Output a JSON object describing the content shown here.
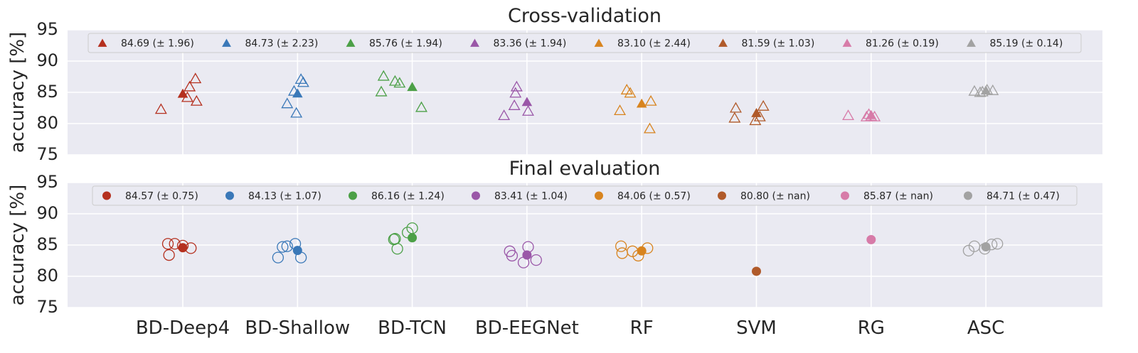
{
  "chart_data": [
    {
      "type": "scatter",
      "title": "Cross-validation",
      "ylabel": "accuracy [%]",
      "ylim": [
        75,
        95
      ],
      "yticks": [
        75,
        80,
        85,
        90,
        95
      ],
      "categories": [
        "BD-Deep4",
        "BD-Shallow",
        "BD-TCN",
        "BD-EEGNet",
        "RF",
        "SVM",
        "RG",
        "ASC"
      ],
      "marker": "triangle",
      "legend": {
        "placement": "top",
        "labels": [
          "84.69 (± 1.96)",
          "84.73 (± 2.23)",
          "85.76 (± 1.94)",
          "83.36 (± 1.94)",
          "83.10 (± 2.44)",
          "81.59 (± 1.03)",
          "81.26 (± 0.19)",
          "85.19 (± 0.14)"
        ]
      },
      "series": [
        {
          "name": "BD-Deep4",
          "color": "#b5301f",
          "mean": 84.69,
          "folds": [
            82.2,
            87.1,
            83.5,
            84.1,
            85.8
          ],
          "offsets": [
            -0.19,
            0.11,
            0.12,
            0.04,
            0.06
          ]
        },
        {
          "name": "BD-Shallow",
          "color": "#3a78b8",
          "mean": 84.73,
          "folds": [
            83.1,
            81.6,
            87.0,
            86.5,
            85.1
          ],
          "offsets": [
            -0.09,
            -0.01,
            0.03,
            0.05,
            -0.03
          ]
        },
        {
          "name": "BD-TCN",
          "color": "#4ca047",
          "mean": 85.76,
          "folds": [
            87.5,
            85.0,
            86.7,
            86.4,
            82.5
          ],
          "offsets": [
            -0.25,
            -0.27,
            -0.15,
            -0.11,
            0.08
          ]
        },
        {
          "name": "BD-EEGNet",
          "color": "#9a57a8",
          "mean": 83.36,
          "folds": [
            81.2,
            82.8,
            85.8,
            84.8,
            81.9
          ],
          "offsets": [
            -0.2,
            -0.11,
            -0.09,
            -0.1,
            0.01
          ]
        },
        {
          "name": "RF",
          "color": "#d8841f",
          "mean": 83.1,
          "folds": [
            82.0,
            85.3,
            84.8,
            83.5,
            79.1
          ],
          "offsets": [
            -0.19,
            -0.13,
            -0.1,
            0.08,
            0.07
          ]
        },
        {
          "name": "SVM",
          "color": "#b05a2a",
          "mean": 81.59,
          "folds": [
            80.8,
            82.4,
            80.4,
            81.0,
            82.7
          ],
          "offsets": [
            -0.19,
            -0.18,
            -0.01,
            0.03,
            0.06
          ]
        },
        {
          "name": "RG",
          "color": "#d77ba8",
          "mean": 81.26,
          "folds": [
            81.2,
            81.0,
            81.4,
            81.1,
            81.0
          ],
          "offsets": [
            -0.2,
            -0.04,
            -0.02,
            0.0,
            0.03
          ]
        },
        {
          "name": "ASC",
          "color": "#a2a2a2",
          "mean": 85.19,
          "folds": [
            85.1,
            84.9,
            85.0,
            85.3,
            85.2
          ],
          "offsets": [
            -0.1,
            -0.05,
            -0.03,
            0.01,
            0.06
          ]
        }
      ]
    },
    {
      "type": "scatter",
      "title": "Final evaluation",
      "ylabel": "accuracy [%]",
      "ylim": [
        75,
        95
      ],
      "yticks": [
        75,
        80,
        85,
        90,
        95
      ],
      "categories": [
        "BD-Deep4",
        "BD-Shallow",
        "BD-TCN",
        "BD-EEGNet",
        "RF",
        "SVM",
        "RG",
        "ASC"
      ],
      "marker": "circle",
      "legend": {
        "placement": "top",
        "labels": [
          "84.57 (± 0.75)",
          "84.13 (± 1.07)",
          "86.16 (± 1.24)",
          "83.41 (± 1.04)",
          "84.06 (± 0.57)",
          "80.80 (± nan)",
          "85.87 (± nan)",
          "84.71 (± 0.47)"
        ]
      },
      "series": [
        {
          "name": "BD-Deep4",
          "color": "#b5301f",
          "mean": 84.57,
          "runs": [
            85.2,
            83.4,
            85.2,
            84.9,
            84.5
          ],
          "offsets": [
            -0.13,
            -0.12,
            -0.07,
            0.0,
            0.07
          ]
        },
        {
          "name": "BD-Shallow",
          "color": "#3a78b8",
          "mean": 84.13,
          "runs": [
            83.0,
            84.7,
            84.8,
            85.2,
            83.0
          ],
          "offsets": [
            -0.17,
            -0.13,
            -0.09,
            -0.02,
            0.03
          ]
        },
        {
          "name": "BD-TCN",
          "color": "#4ca047",
          "mean": 86.16,
          "runs": [
            85.9,
            86.0,
            84.4,
            87.0,
            87.7
          ],
          "offsets": [
            -0.16,
            -0.15,
            -0.13,
            -0.04,
            0.0
          ]
        },
        {
          "name": "BD-EEGNet",
          "color": "#9a57a8",
          "mean": 83.41,
          "runs": [
            84.0,
            83.3,
            82.2,
            84.7,
            82.6
          ],
          "offsets": [
            -0.15,
            -0.13,
            -0.03,
            0.01,
            0.08
          ]
        },
        {
          "name": "RF",
          "color": "#d8841f",
          "mean": 84.06,
          "runs": [
            84.8,
            83.7,
            84.0,
            83.3,
            84.5
          ],
          "offsets": [
            -0.18,
            -0.17,
            -0.08,
            -0.03,
            0.05
          ]
        },
        {
          "name": "SVM",
          "color": "#b05a2a",
          "mean": 80.8,
          "runs": [],
          "offsets": []
        },
        {
          "name": "RG",
          "color": "#d77ba8",
          "mean": 85.87,
          "runs": [],
          "offsets": []
        },
        {
          "name": "ASC",
          "color": "#a2a2a2",
          "mean": 84.71,
          "runs": [
            84.1,
            84.8,
            84.4,
            85.1,
            85.2
          ],
          "offsets": [
            -0.15,
            -0.1,
            -0.01,
            0.05,
            0.1
          ]
        }
      ]
    }
  ]
}
